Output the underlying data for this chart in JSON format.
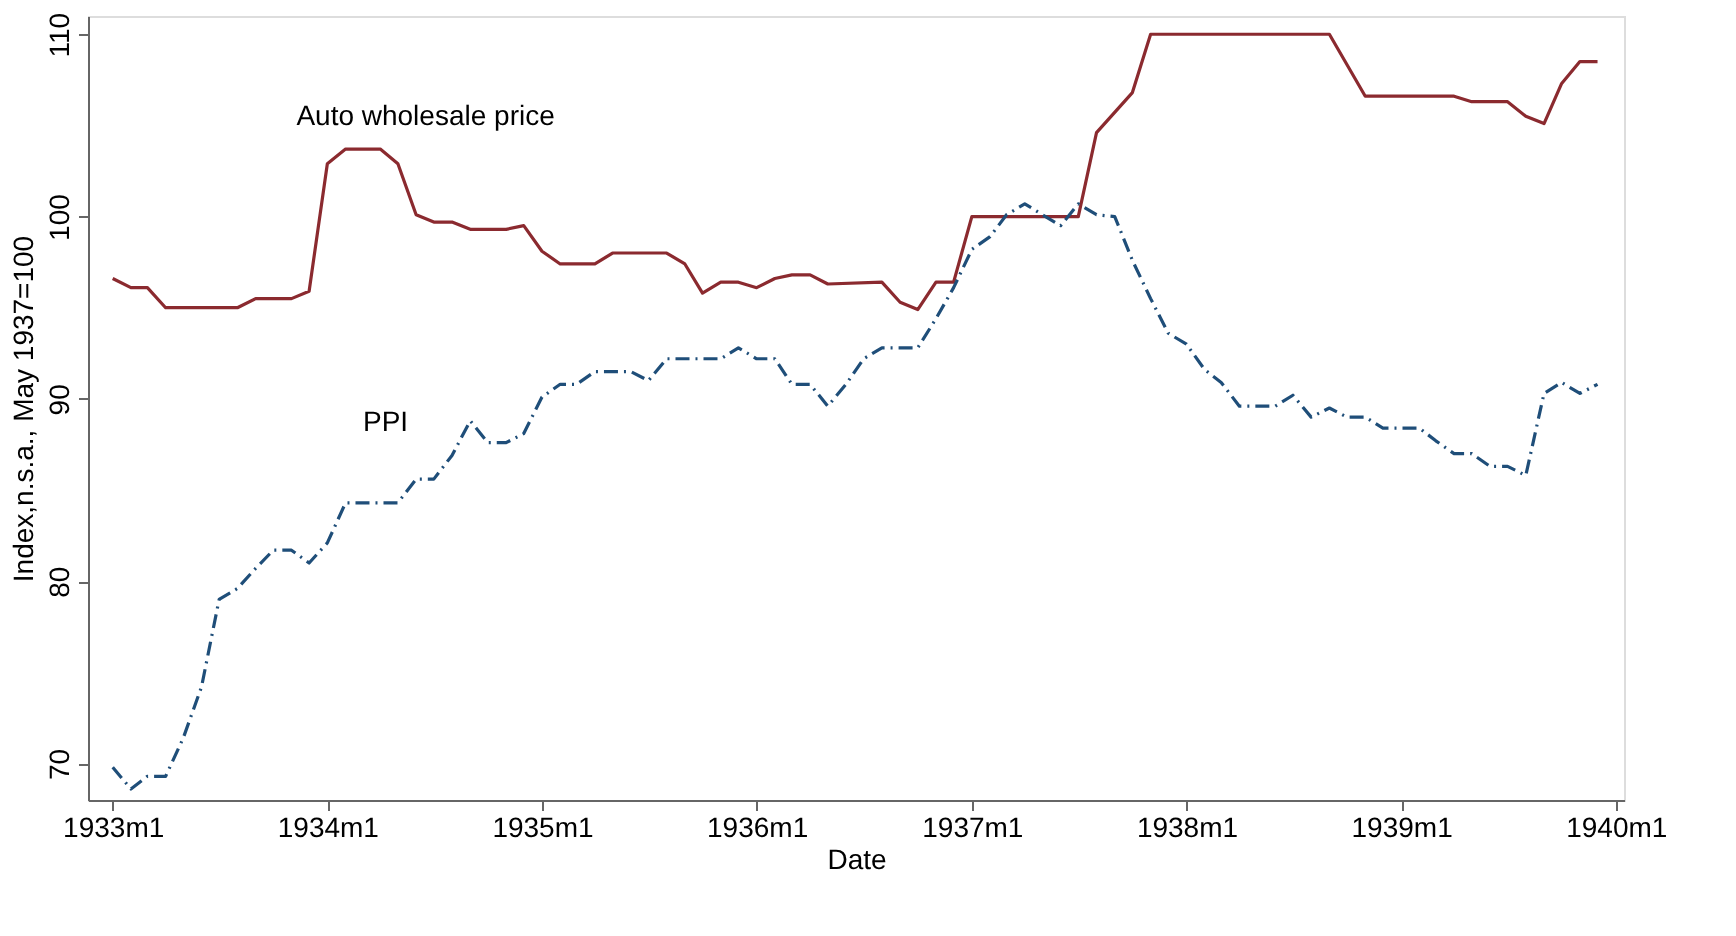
{
  "chart_data": {
    "type": "line",
    "xlabel": "Date",
    "ylabel": "Index,n.s.a., May 1937=100",
    "xlim": [
      "1932-11-20",
      "1940-01-15"
    ],
    "xticks": [
      {
        "value": "1933-01",
        "label": "1933m1"
      },
      {
        "value": "1934-01",
        "label": "1934m1"
      },
      {
        "value": "1935-01",
        "label": "1935m1"
      },
      {
        "value": "1936-01",
        "label": "1936m1"
      },
      {
        "value": "1937-01",
        "label": "1937m1"
      },
      {
        "value": "1938-01",
        "label": "1938m1"
      },
      {
        "value": "1939-01",
        "label": "1939m1"
      },
      {
        "value": "1940-01",
        "label": "1940m1"
      }
    ],
    "ylim": [
      68,
      111
    ],
    "yticks": [
      70,
      80,
      90,
      100,
      110
    ],
    "grid": false,
    "series": [
      {
        "name": "Auto wholesale price",
        "color": "#8b2a2f",
        "line_style": "solid",
        "x": [
          "1933-01",
          "1933-02",
          "1933-03",
          "1933-04",
          "1933-08",
          "1933-09",
          "1933-11",
          "1933-12",
          "1934-01",
          "1934-02",
          "1934-04",
          "1934-05",
          "1934-06",
          "1934-07",
          "1934-08",
          "1934-09",
          "1934-11",
          "1934-12",
          "1935-01",
          "1935-02",
          "1935-04",
          "1935-05",
          "1935-08",
          "1935-09",
          "1935-10",
          "1935-11",
          "1935-12",
          "1936-01",
          "1936-02",
          "1936-03",
          "1936-04",
          "1936-05",
          "1936-08",
          "1936-09",
          "1936-10",
          "1936-11",
          "1936-12",
          "1937-01",
          "1937-07",
          "1937-08",
          "1937-10",
          "1937-11",
          "1938-09",
          "1938-11",
          "1939-04",
          "1939-05",
          "1939-07",
          "1939-08",
          "1939-09",
          "1939-10",
          "1939-11",
          "1939-12"
        ],
        "values": [
          96.6,
          96.1,
          96.1,
          95.0,
          95.0,
          95.5,
          95.5,
          95.9,
          102.9,
          103.7,
          103.7,
          102.9,
          100.1,
          99.7,
          99.7,
          99.3,
          99.3,
          99.5,
          98.1,
          97.4,
          97.4,
          98.0,
          98.0,
          97.4,
          95.8,
          96.4,
          96.4,
          96.1,
          96.6,
          96.8,
          96.8,
          96.3,
          96.4,
          95.3,
          94.9,
          96.4,
          96.4,
          100.0,
          100.0,
          104.6,
          106.8,
          110.0,
          110.0,
          106.6,
          106.6,
          106.3,
          106.3,
          105.5,
          105.1,
          107.3,
          108.5,
          108.5
        ]
      },
      {
        "name": "PPI",
        "color": "#1f4e79",
        "line_style": "dashed",
        "x": [
          "1933-01",
          "1933-02",
          "1933-03",
          "1933-04",
          "1933-05",
          "1933-06",
          "1933-07",
          "1933-08",
          "1933-09",
          "1933-10",
          "1933-11",
          "1933-12",
          "1934-01",
          "1934-02",
          "1934-05",
          "1934-06",
          "1934-07",
          "1934-08",
          "1934-09",
          "1934-10",
          "1934-11",
          "1934-12",
          "1935-01",
          "1935-02",
          "1935-03",
          "1935-04",
          "1935-06",
          "1935-07",
          "1935-08",
          "1935-11",
          "1935-12",
          "1936-01",
          "1936-02",
          "1936-03",
          "1936-04",
          "1936-05",
          "1936-06",
          "1936-07",
          "1936-08",
          "1936-10",
          "1936-11",
          "1936-12",
          "1937-01",
          "1937-02",
          "1937-03",
          "1937-04",
          "1937-05",
          "1937-06",
          "1937-07",
          "1937-08",
          "1937-09",
          "1937-10",
          "1937-11",
          "1937-12",
          "1938-01",
          "1938-02",
          "1938-03",
          "1938-04",
          "1938-06",
          "1938-07",
          "1938-08",
          "1938-09",
          "1938-10",
          "1938-11",
          "1938-12",
          "1939-02",
          "1939-03",
          "1939-04",
          "1939-05",
          "1939-06",
          "1939-07",
          "1939-08",
          "1939-09",
          "1939-10",
          "1939-11",
          "1939-12"
        ],
        "values": [
          69.8,
          68.6,
          69.3,
          69.3,
          71.4,
          74.2,
          79.0,
          79.6,
          80.7,
          81.7,
          81.7,
          81.0,
          82.1,
          84.3,
          84.3,
          85.6,
          85.6,
          86.9,
          88.8,
          87.6,
          87.6,
          88.1,
          90.1,
          90.8,
          90.8,
          91.5,
          91.5,
          91.0,
          92.2,
          92.2,
          92.8,
          92.2,
          92.2,
          90.8,
          90.8,
          89.6,
          90.8,
          92.2,
          92.8,
          92.8,
          94.4,
          96.1,
          98.2,
          98.9,
          100.1,
          100.7,
          100.1,
          99.5,
          100.7,
          100.1,
          100.0,
          97.6,
          95.5,
          93.6,
          93.0,
          91.6,
          90.9,
          89.6,
          89.6,
          90.2,
          89.0,
          89.5,
          89.0,
          89.0,
          88.4,
          88.4,
          87.7,
          87.0,
          87.0,
          86.3,
          86.3,
          85.8,
          90.3,
          90.9,
          90.3,
          90.8
        ]
      }
    ]
  }
}
